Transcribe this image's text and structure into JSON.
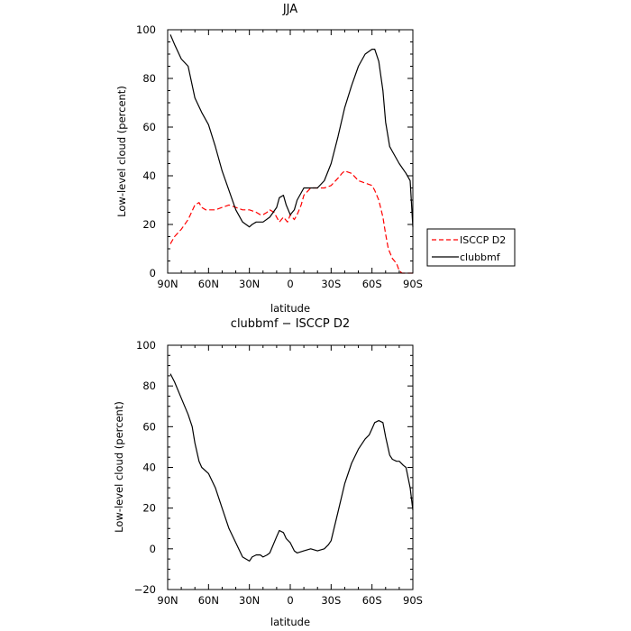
{
  "chart_data": [
    {
      "type": "line",
      "title": "JJA",
      "xlabel": "latitude",
      "ylabel": "Low-level cloud (percent)",
      "xlim": [
        90,
        -90
      ],
      "ylim": [
        0,
        100
      ],
      "x_ticks": [
        90,
        60,
        30,
        0,
        -30,
        -60,
        -90
      ],
      "x_tick_labels": [
        "90N",
        "60N",
        "30N",
        "0",
        "30S",
        "60S",
        "90S"
      ],
      "y_ticks": [
        0,
        20,
        40,
        60,
        80,
        100
      ],
      "y_tick_labels": [
        "0",
        "20",
        "40",
        "60",
        "80",
        "100"
      ],
      "legend": {
        "placement": "outside-right",
        "entries": [
          "ISCCP D2",
          "clubbmf"
        ]
      },
      "series": [
        {
          "name": "ISCCP D2",
          "color": "#ff0000",
          "dash": "dashed",
          "x": [
            88,
            85,
            80,
            75,
            70,
            67,
            65,
            62,
            60,
            58,
            55,
            50,
            45,
            40,
            35,
            30,
            25,
            22,
            20,
            17,
            15,
            12,
            10,
            8,
            5,
            2,
            0,
            -3,
            -5,
            -8,
            -10,
            -15,
            -20,
            -25,
            -30,
            -35,
            -38,
            -40,
            -45,
            -50,
            -55,
            -60,
            -62,
            -65,
            -68,
            -70,
            -72,
            -75,
            -78,
            -80,
            -82,
            -85,
            -88,
            -90
          ],
          "y": [
            12,
            15,
            18,
            22,
            28,
            29,
            27,
            26,
            26,
            26,
            26,
            27,
            28,
            27,
            26,
            26,
            25,
            24,
            24,
            25,
            26,
            25,
            23,
            21,
            23,
            21,
            24,
            22,
            24,
            28,
            32,
            35,
            35,
            35,
            36,
            39,
            41,
            42,
            41,
            38,
            37,
            36,
            34,
            30,
            23,
            16,
            10,
            6,
            4,
            1,
            0,
            0,
            0,
            0
          ]
        },
        {
          "name": "clubbmf",
          "color": "#000000",
          "dash": "solid",
          "x": [
            88,
            85,
            80,
            75,
            70,
            65,
            60,
            55,
            50,
            45,
            40,
            35,
            30,
            28,
            25,
            20,
            15,
            10,
            8,
            5,
            3,
            0,
            -3,
            -5,
            -10,
            -15,
            -20,
            -25,
            -30,
            -35,
            -40,
            -45,
            -50,
            -55,
            -60,
            -62,
            -65,
            -68,
            -70,
            -73,
            -75,
            -80,
            -85,
            -88,
            -90
          ],
          "y": [
            98,
            94,
            88,
            85,
            72,
            66,
            61,
            52,
            42,
            34,
            26,
            21,
            19,
            20,
            21,
            21,
            23,
            27,
            31,
            32,
            28,
            24,
            26,
            30,
            35,
            35,
            35,
            38,
            45,
            56,
            68,
            77,
            85,
            90,
            92,
            92,
            87,
            75,
            62,
            52,
            50,
            45,
            41,
            38,
            19
          ]
        }
      ]
    },
    {
      "type": "line",
      "title": "clubbmf − ISCCP D2",
      "xlabel": "latitude",
      "ylabel": "Low-level cloud (percent)",
      "xlim": [
        90,
        -90
      ],
      "ylim": [
        -20,
        100
      ],
      "x_ticks": [
        90,
        60,
        30,
        0,
        -30,
        -60,
        -90
      ],
      "x_tick_labels": [
        "90N",
        "60N",
        "30N",
        "0",
        "30S",
        "60S",
        "90S"
      ],
      "y_ticks": [
        -20,
        0,
        20,
        40,
        60,
        80,
        100
      ],
      "y_tick_labels": [
        "−20",
        "0",
        "20",
        "40",
        "60",
        "80",
        "100"
      ],
      "series": [
        {
          "color": "#000000",
          "dash": "solid",
          "x": [
            88,
            85,
            80,
            75,
            72,
            70,
            67,
            65,
            60,
            55,
            50,
            45,
            40,
            35,
            30,
            28,
            25,
            22,
            20,
            17,
            15,
            10,
            8,
            5,
            3,
            0,
            -3,
            -5,
            -10,
            -15,
            -20,
            -25,
            -28,
            -30,
            -35,
            -40,
            -45,
            -50,
            -55,
            -58,
            -60,
            -62,
            -65,
            -68,
            -70,
            -73,
            -75,
            -78,
            -80,
            -83,
            -85,
            -88,
            -90
          ],
          "y": [
            86,
            82,
            74,
            66,
            60,
            52,
            43,
            40,
            37,
            30,
            20,
            10,
            3,
            -4,
            -6,
            -4,
            -3,
            -3,
            -4,
            -3,
            -2,
            6,
            9,
            8,
            5,
            3,
            -1,
            -2,
            -1,
            0,
            -1,
            0,
            2,
            4,
            18,
            32,
            42,
            49,
            54,
            56,
            59,
            62,
            63,
            62,
            55,
            46,
            44,
            43,
            43,
            41,
            40,
            30,
            19
          ]
        }
      ]
    }
  ]
}
